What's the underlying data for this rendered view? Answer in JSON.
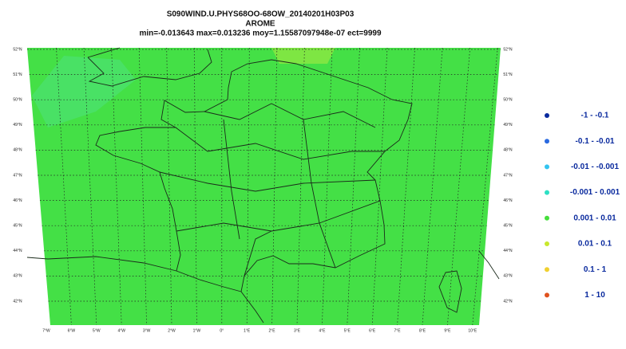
{
  "header": {
    "title": "S090WIND.U.PHYS68OO-68OW_20140201H03P03",
    "model": "AROME",
    "stats": "min=-0.013643 max=0.013236 moy=1.15587097948e-07 ect=9999"
  },
  "latitude_labels": [
    "52°N",
    "51°N",
    "50°N",
    "49°N",
    "48°N",
    "47°N",
    "46°N",
    "45°N",
    "44°N",
    "43°N",
    "42°N"
  ],
  "longitude_labels": [
    "7°W",
    "6°W",
    "5°W",
    "4°W",
    "3°W",
    "2°W",
    "1°W",
    "0°",
    "1°E",
    "2°E",
    "3°E",
    "4°E",
    "5°E",
    "6°E",
    "7°E",
    "8°E",
    "9°E",
    "10°E"
  ],
  "legend": [
    {
      "label": "-1 - -0.1",
      "color": "#0a2a9e"
    },
    {
      "label": "-0.1 - -0.01",
      "color": "#2a6ae0"
    },
    {
      "label": "-0.01 - -0.001",
      "color": "#33c4f0"
    },
    {
      "label": "-0.001 - 0.001",
      "color": "#2ee0c4"
    },
    {
      "label": "0.001 - 0.01",
      "color": "#46de3c"
    },
    {
      "label": "0.01 - 0.1",
      "color": "#c8e82c"
    },
    {
      "label": "0.1 - 1",
      "color": "#f0d030"
    },
    {
      "label": "1 - 10",
      "color": "#e0521e"
    }
  ]
}
